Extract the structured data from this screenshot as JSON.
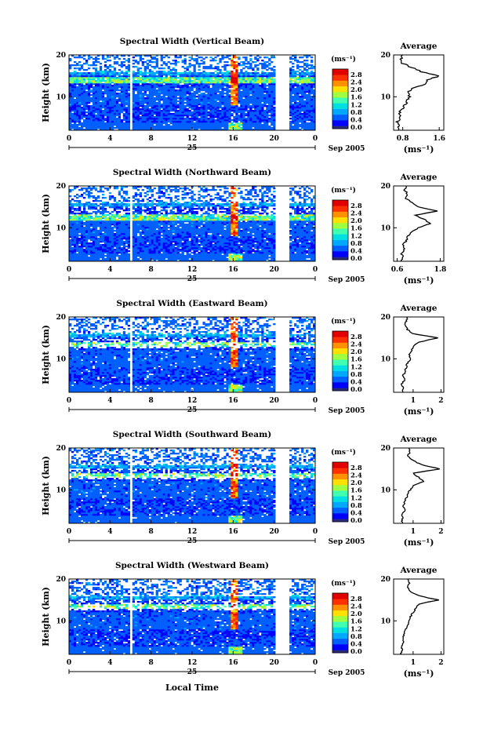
{
  "figure": {
    "x_axis_label": "Local Time",
    "y_axis_label": "Height (km)",
    "date_label": "Sep 2005",
    "day_label": "25",
    "colorbar_unit": "(ms⁻¹)",
    "avg_title": "Average",
    "avg_unit": "(ms⁻¹)",
    "colors": [
      "#2a2a7a",
      "#0000ff",
      "#0060ff",
      "#00a8ff",
      "#00e0e0",
      "#40ffb0",
      "#a0ff40",
      "#ffe000",
      "#ff9000",
      "#ff3000",
      "#e00000"
    ]
  },
  "chart_data": [
    {
      "type": "heatmap",
      "title": "Spectral Width (Vertical Beam)",
      "x_ticks": [
        "0",
        "4",
        "8",
        "12",
        "16",
        "20",
        "0"
      ],
      "y_ticks": [
        "10",
        "20"
      ],
      "colorbar_ticks": [
        "0.0",
        "0.4",
        "0.8",
        "1.2",
        "1.6",
        "2.0",
        "2.4",
        "2.8"
      ],
      "colorbar_range": [
        0.0,
        3.0
      ],
      "xlim": [
        0,
        24
      ],
      "ylim": [
        2,
        20
      ],
      "avg_profile": {
        "x_ticks": [
          "0.8",
          "1.6"
        ],
        "xlim": [
          0.6,
          1.7
        ],
        "height": [
          2,
          3,
          4,
          5,
          6,
          7,
          8,
          9,
          10,
          11,
          12,
          13,
          14,
          15,
          16,
          17,
          18,
          19,
          20
        ],
        "width": [
          0.7,
          0.72,
          0.68,
          0.75,
          0.7,
          0.8,
          0.85,
          0.9,
          0.95,
          0.9,
          1.0,
          1.3,
          1.35,
          1.6,
          1.2,
          1.0,
          0.8,
          0.75,
          0.8
        ]
      }
    },
    {
      "type": "heatmap",
      "title": "Spectral Width (Northward Beam)",
      "x_ticks": [
        "0",
        "4",
        "8",
        "12",
        "16",
        "20",
        "0"
      ],
      "y_ticks": [
        "10",
        "20"
      ],
      "colorbar_ticks": [
        "0.0",
        "0.4",
        "0.8",
        "1.2",
        "1.6",
        "2.0",
        "2.4",
        "2.8"
      ],
      "colorbar_range": [
        0.0,
        3.0
      ],
      "xlim": [
        0,
        24
      ],
      "ylim": [
        2,
        20
      ],
      "avg_profile": {
        "x_ticks": [
          "0.6",
          "1.8"
        ],
        "xlim": [
          0.5,
          1.9
        ],
        "height": [
          2,
          3,
          4,
          5,
          6,
          7,
          8,
          9,
          10,
          11,
          12,
          13,
          14,
          15,
          16,
          17,
          18,
          19,
          20
        ],
        "width": [
          0.7,
          0.75,
          0.72,
          0.8,
          0.78,
          0.85,
          0.9,
          1.0,
          1.2,
          1.5,
          1.35,
          1.1,
          1.7,
          1.2,
          1.0,
          0.85,
          0.9,
          0.8,
          0.85
        ]
      }
    },
    {
      "type": "heatmap",
      "title": "Spectral Width (Eastward Beam)",
      "x_ticks": [
        "0",
        "4",
        "8",
        "12",
        "16",
        "20",
        "0"
      ],
      "y_ticks": [
        "10",
        "20"
      ],
      "colorbar_ticks": [
        "0.0",
        "0.4",
        "0.8",
        "1.2",
        "1.6",
        "2.0",
        "2.4",
        "2.8"
      ],
      "colorbar_range": [
        0.0,
        3.0
      ],
      "xlim": [
        0,
        24
      ],
      "ylim": [
        2,
        20
      ],
      "avg_profile": {
        "x_ticks": [
          "1",
          "2"
        ],
        "xlim": [
          0.3,
          2.1
        ],
        "height": [
          2,
          3,
          4,
          5,
          6,
          7,
          8,
          9,
          10,
          11,
          12,
          13,
          14,
          15,
          16,
          17,
          18,
          19,
          20
        ],
        "width": [
          0.6,
          0.65,
          0.6,
          0.7,
          0.65,
          0.72,
          0.75,
          0.8,
          0.9,
          0.85,
          0.95,
          1.0,
          1.2,
          1.9,
          1.0,
          0.8,
          0.7,
          0.75,
          0.8
        ]
      }
    },
    {
      "type": "heatmap",
      "title": "Spectral Width (Southward Beam)",
      "x_ticks": [
        "0",
        "4",
        "8",
        "12",
        "16",
        "20",
        "0"
      ],
      "y_ticks": [
        "10",
        "20"
      ],
      "colorbar_ticks": [
        "0.0",
        "0.4",
        "0.8",
        "1.2",
        "1.6",
        "2.0",
        "2.4",
        "2.8"
      ],
      "colorbar_range": [
        0.0,
        3.0
      ],
      "xlim": [
        0,
        24
      ],
      "ylim": [
        2,
        20
      ],
      "avg_profile": {
        "x_ticks": [
          "1",
          "2"
        ],
        "xlim": [
          0.3,
          2.1
        ],
        "height": [
          2,
          3,
          4,
          5,
          6,
          7,
          8,
          9,
          10,
          11,
          12,
          13,
          14,
          15,
          16,
          17,
          18,
          19,
          20
        ],
        "width": [
          0.6,
          0.62,
          0.6,
          0.7,
          0.65,
          0.7,
          0.75,
          0.8,
          0.9,
          1.0,
          1.4,
          1.2,
          1.0,
          1.95,
          1.3,
          1.0,
          0.8,
          0.9,
          0.85
        ]
      }
    },
    {
      "type": "heatmap",
      "title": "Spectral Width (Westward Beam)",
      "x_ticks": [
        "0",
        "4",
        "8",
        "12",
        "16",
        "20",
        "0"
      ],
      "y_ticks": [
        "10",
        "20"
      ],
      "colorbar_ticks": [
        "0.0",
        "0.4",
        "0.8",
        "1.2",
        "1.6",
        "2.0",
        "2.4",
        "2.8"
      ],
      "colorbar_range": [
        0.0,
        3.0
      ],
      "xlim": [
        0,
        24
      ],
      "ylim": [
        2,
        20
      ],
      "avg_profile": {
        "x_ticks": [
          "1",
          "2"
        ],
        "xlim": [
          0.3,
          2.1
        ],
        "height": [
          2,
          3,
          4,
          5,
          6,
          7,
          8,
          9,
          10,
          11,
          12,
          13,
          14,
          15,
          16,
          17,
          18,
          19,
          20
        ],
        "width": [
          0.55,
          0.6,
          0.6,
          0.65,
          0.62,
          0.7,
          0.72,
          0.8,
          0.85,
          0.9,
          1.0,
          1.1,
          1.2,
          1.9,
          1.2,
          0.9,
          0.8,
          0.85,
          0.8
        ]
      }
    }
  ]
}
